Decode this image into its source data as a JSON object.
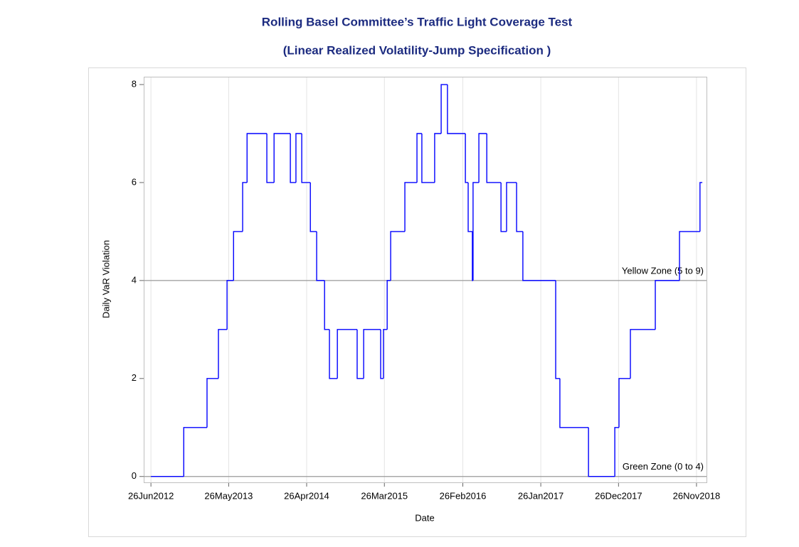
{
  "chart_data": {
    "type": "line",
    "step": "after",
    "title": "Rolling Basel Committee’s Traffic Light Coverage Test",
    "subtitle": "(Linear Realized Volatility-Jump Specification )",
    "x_label": "Date",
    "y_label": "Daily VaR Violation",
    "color": "#0000ff",
    "x": [
      "2012-06-26",
      "2012-11-14",
      "2013-02-22",
      "2013-04-12",
      "2013-05-19",
      "2013-06-16",
      "2013-07-25",
      "2013-08-13",
      "2013-11-06",
      "2013-12-07",
      "2014-02-15",
      "2014-03-11",
      "2014-04-05",
      "2014-05-12",
      "2014-06-08",
      "2014-07-12",
      "2014-08-02",
      "2014-09-05",
      "2014-11-29",
      "2014-12-27",
      "2015-03-10",
      "2015-03-22",
      "2015-04-07",
      "2015-04-22",
      "2015-06-22",
      "2015-08-13",
      "2015-09-03",
      "2015-10-28",
      "2015-11-25",
      "2015-12-22",
      "2016-03-08",
      "2016-03-20",
      "2016-04-07",
      "2016-04-10",
      "2016-05-05",
      "2016-06-08",
      "2016-08-08",
      "2016-09-01",
      "2016-10-14",
      "2016-11-10",
      "2017-03-31",
      "2017-04-18",
      "2017-08-19",
      "2017-12-10",
      "2017-12-28",
      "2018-02-15",
      "2018-06-02",
      "2018-09-14",
      "2018-12-11",
      "2018-12-21"
    ],
    "values": [
      0,
      1,
      2,
      3,
      4,
      5,
      6,
      7,
      6,
      7,
      6,
      7,
      6,
      5,
      4,
      3,
      2,
      3,
      2,
      3,
      2,
      3,
      4,
      5,
      6,
      7,
      6,
      7,
      8,
      7,
      6,
      5,
      4,
      6,
      7,
      6,
      5,
      6,
      5,
      4,
      2,
      1,
      0,
      1,
      2,
      3,
      4,
      5,
      6,
      6
    ],
    "xlim": [
      "2012-05-26",
      "2019-01-08"
    ],
    "xticks": [
      {
        "value": "2012-06-26",
        "label": "26Jun2012"
      },
      {
        "value": "2013-05-26",
        "label": "26May2013"
      },
      {
        "value": "2014-04-26",
        "label": "26Apr2014"
      },
      {
        "value": "2015-03-26",
        "label": "26Mar2015"
      },
      {
        "value": "2016-02-26",
        "label": "26Feb2016"
      },
      {
        "value": "2017-01-26",
        "label": "26Jan2017"
      },
      {
        "value": "2017-12-26",
        "label": "26Dec2017"
      },
      {
        "value": "2018-11-26",
        "label": "26Nov2018"
      }
    ],
    "ylim": [
      -0.12,
      8.16
    ],
    "yticks": [
      0,
      2,
      4,
      6,
      8
    ],
    "grid": "x",
    "reference_lines": [
      {
        "value": 4,
        "label": "Yellow Zone  (5 to 9)"
      },
      {
        "value": 0,
        "label": "Green Zone (0 to 4)"
      }
    ]
  }
}
